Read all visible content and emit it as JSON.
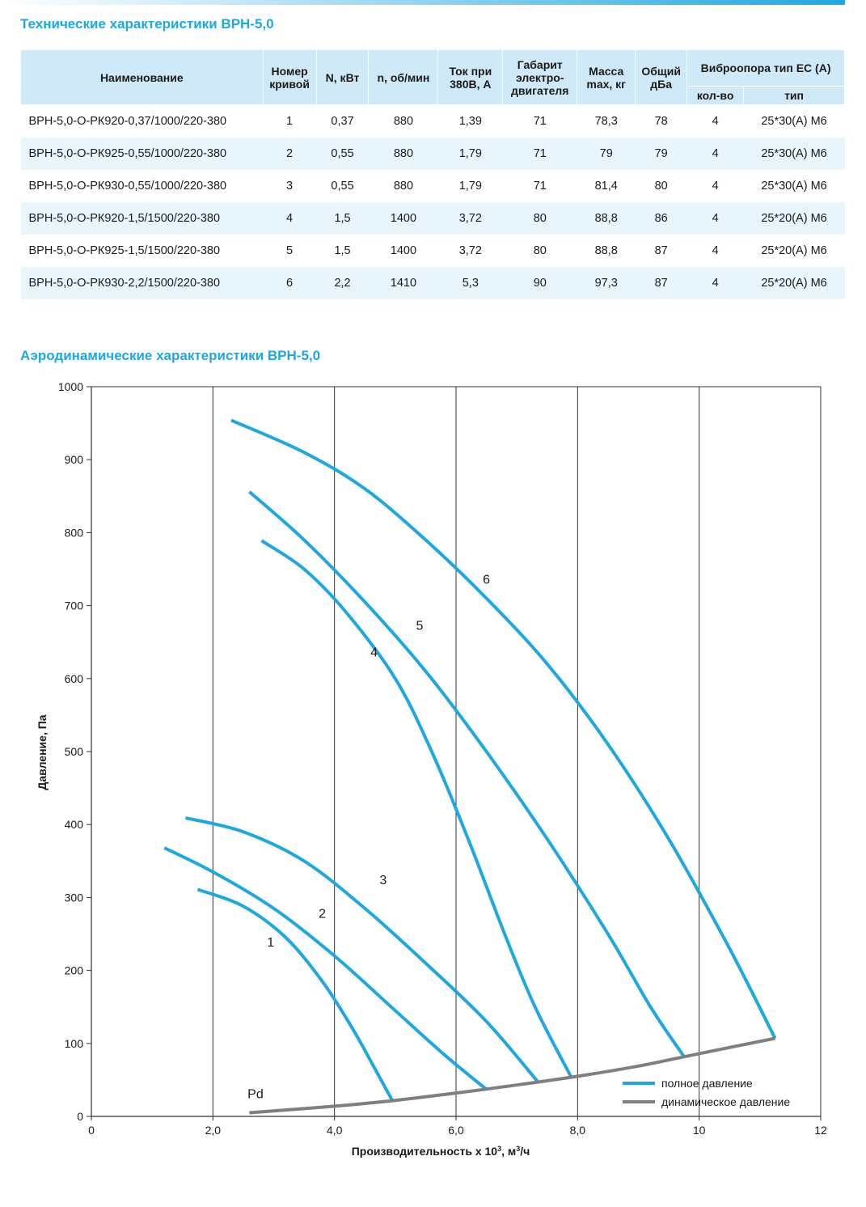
{
  "section1_title": "Технические характеристики ВРН-5,0",
  "section2_title": "Аэродинамические характеристики ВРН-5,0",
  "table": {
    "headers": {
      "name": "Наименование",
      "curve": "Номер кривой",
      "power": "N, кВт",
      "rpm": "n, об/мин",
      "current": "Ток при 380В, А",
      "motor": "Габарит электро-двигателя",
      "mass": "Масса max, кг",
      "noise": "Общий дБа",
      "vibro": "Виброопора тип ЕС (А)",
      "vibro_qty": "кол-во",
      "vibro_type": "тип"
    },
    "rows": [
      {
        "name": "ВРН-5,0-О-РК920-0,37/1000/220-380",
        "curve": "1",
        "power": "0,37",
        "rpm": "880",
        "current": "1,39",
        "motor": "71",
        "mass": "78,3",
        "noise": "78",
        "qty": "4",
        "type": "25*30(А) М6"
      },
      {
        "name": "ВРН-5,0-О-РК925-0,55/1000/220-380",
        "curve": "2",
        "power": "0,55",
        "rpm": "880",
        "current": "1,79",
        "motor": "71",
        "mass": "79",
        "noise": "79",
        "qty": "4",
        "type": "25*30(А) М6"
      },
      {
        "name": "ВРН-5,0-О-РК930-0,55/1000/220-380",
        "curve": "3",
        "power": "0,55",
        "rpm": "880",
        "current": "1,79",
        "motor": "71",
        "mass": "81,4",
        "noise": "80",
        "qty": "4",
        "type": "25*30(А) М6"
      },
      {
        "name": "ВРН-5,0-О-РК920-1,5/1500/220-380",
        "curve": "4",
        "power": "1,5",
        "rpm": "1400",
        "current": "3,72",
        "motor": "80",
        "mass": "88,8",
        "noise": "86",
        "qty": "4",
        "type": "25*20(А) М6"
      },
      {
        "name": "ВРН-5,0-О-РК925-1,5/1500/220-380",
        "curve": "5",
        "power": "1,5",
        "rpm": "1400",
        "current": "3,72",
        "motor": "80",
        "mass": "88,8",
        "noise": "87",
        "qty": "4",
        "type": "25*20(А) М6"
      },
      {
        "name": "ВРН-5,0-О-РК930-2,2/1500/220-380",
        "curve": "6",
        "power": "2,2",
        "rpm": "1410",
        "current": "5,3",
        "motor": "90",
        "mass": "97,3",
        "noise": "87",
        "qty": "4",
        "type": "25*20(А) М6"
      }
    ]
  },
  "colors": {
    "accent": "#1ea7e1",
    "header_bg": "#cfe9f8",
    "row_alt_bg": "#e8f5fc",
    "total_pressure": "#1ea7e1",
    "dynamic_pressure": "#7f7f7f"
  },
  "chart_data": {
    "type": "line",
    "xlabel": "Производительность х 10³, м³/ч",
    "ylabel": "Давление, Па",
    "xlim": [
      0,
      12
    ],
    "ylim": [
      0,
      1000
    ],
    "xticks": [
      0,
      2,
      4,
      6,
      8,
      10,
      12
    ],
    "xtick_labels": [
      "0",
      "2,0",
      "4,0",
      "6,0",
      "8,0",
      "10",
      "12"
    ],
    "yticks": [
      0,
      100,
      200,
      300,
      400,
      500,
      600,
      700,
      800,
      900,
      1000
    ],
    "ytick_labels": [
      "0",
      "100",
      "200",
      "300",
      "400",
      "500",
      "600",
      "700",
      "800",
      "900",
      "1000"
    ],
    "grid": true,
    "legend_position": "bottom-right",
    "legend": [
      "полное давление",
      "динамическое давление"
    ],
    "series": [
      {
        "label": "1",
        "kind": "total",
        "x": [
          1.75,
          2.5,
          3.2,
          3.8,
          4.3,
          4.7,
          4.95
        ],
        "y": [
          311,
          288,
          245,
          185,
          120,
          60,
          22
        ]
      },
      {
        "label": "2",
        "kind": "total",
        "x": [
          1.2,
          2.0,
          3.0,
          4.0,
          5.0,
          5.8,
          6.5
        ],
        "y": [
          368,
          335,
          285,
          220,
          145,
          85,
          37
        ]
      },
      {
        "label": "3",
        "kind": "total",
        "x": [
          1.55,
          2.5,
          3.5,
          4.5,
          5.5,
          6.5,
          7.35
        ],
        "y": [
          409,
          390,
          350,
          285,
          210,
          130,
          47
        ]
      },
      {
        "label": "4",
        "kind": "total",
        "x": [
          2.8,
          3.5,
          4.2,
          5.0,
          5.6,
          6.2,
          6.8,
          7.3,
          7.9
        ],
        "y": [
          789,
          750,
          690,
          600,
          500,
          380,
          250,
          150,
          53
        ]
      },
      {
        "label": "5",
        "kind": "total",
        "x": [
          2.6,
          3.5,
          4.5,
          5.5,
          6.5,
          7.5,
          8.5,
          9.2,
          9.75
        ],
        "y": [
          856,
          790,
          705,
          610,
          500,
          380,
          250,
          150,
          82
        ]
      },
      {
        "label": "6",
        "kind": "total",
        "x": [
          2.3,
          3.5,
          4.5,
          5.5,
          6.5,
          7.5,
          8.5,
          9.5,
          10.5,
          11.25
        ],
        "y": [
          954,
          910,
          860,
          790,
          710,
          620,
          510,
          380,
          230,
          107
        ]
      },
      {
        "label": "Pd",
        "kind": "dynamic",
        "x": [
          2.6,
          4.0,
          5.0,
          6.0,
          7.0,
          8.0,
          9.0,
          10.0,
          11.25
        ],
        "y": [
          5,
          14,
          22,
          32,
          43,
          55,
          69,
          86,
          107
        ]
      }
    ],
    "curve_labels": [
      {
        "text": "1",
        "x": 2.95,
        "y": 233
      },
      {
        "text": "2",
        "x": 3.8,
        "y": 272
      },
      {
        "text": "3",
        "x": 4.8,
        "y": 318
      },
      {
        "text": "4",
        "x": 4.65,
        "y": 630
      },
      {
        "text": "5",
        "x": 5.4,
        "y": 667
      },
      {
        "text": "6",
        "x": 6.5,
        "y": 730
      },
      {
        "text": "Pd",
        "x": 2.7,
        "y": 25
      }
    ]
  }
}
